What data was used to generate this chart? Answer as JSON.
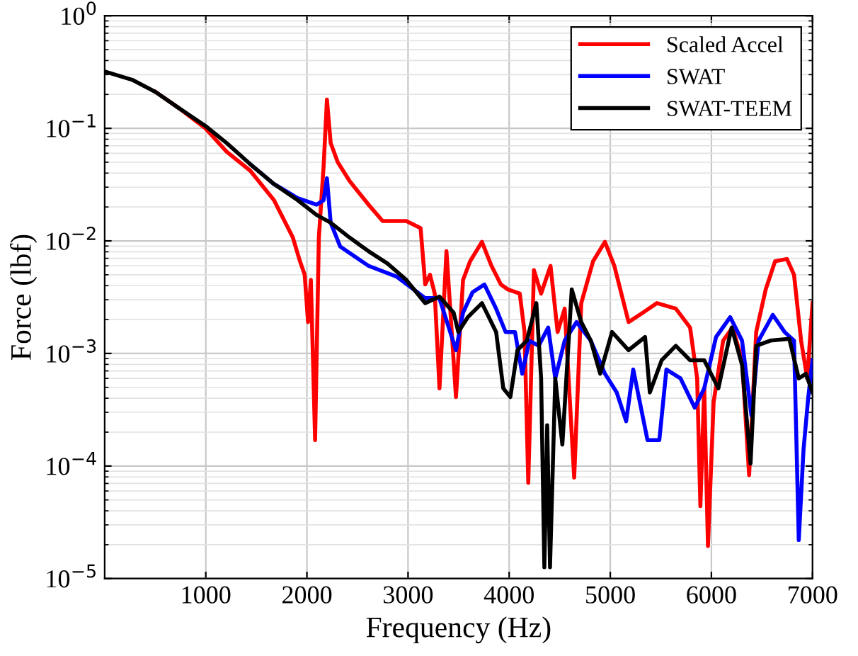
{
  "chart_data": {
    "type": "line",
    "xlabel": "Frequency (Hz)",
    "ylabel": "Force (lbf)",
    "log": "y",
    "grid": true,
    "legend": "top right",
    "line_style": "solid",
    "marker": "none",
    "xlim": [
      0,
      7000
    ],
    "xticks": [
      1000,
      2000,
      3000,
      4000,
      5000,
      6000,
      7000
    ],
    "ylim": [
      1e-05,
      1
    ],
    "yticks": [
      {
        "value": 1e-05,
        "label": "10$^{−5}$"
      },
      {
        "value": 0.0001,
        "label": "10$^{−4}$"
      },
      {
        "value": 0.001,
        "label": "10$^{−3}$"
      },
      {
        "value": 0.01,
        "label": "10$^{−2}$"
      },
      {
        "value": 0.1,
        "label": "10$^{−1}$"
      },
      {
        "value": 1,
        "label": "10$^{0}$"
      }
    ],
    "series": [
      {
        "name": "Scaled Accel",
        "color": "#ff0000",
        "x": [
          505,
          739,
          996,
          1206,
          1440,
          1674,
          1861,
          1931,
          1978,
          2011,
          2039,
          2081,
          2118,
          2165,
          2198,
          2235,
          2305,
          2422,
          2609,
          2749,
          2983,
          3124,
          3170,
          3217,
          3264,
          3311,
          3380,
          3474,
          3544,
          3614,
          3731,
          3825,
          3918,
          3988,
          4105,
          4152,
          4189,
          4245,
          4316,
          4409,
          4479,
          4549,
          4643,
          4713,
          4830,
          4947,
          5040,
          5181,
          5321,
          5461,
          5648,
          5789,
          5859,
          5891,
          5929,
          5966,
          6022,
          6116,
          6209,
          6303,
          6373,
          6443,
          6537,
          6630,
          6747,
          6817,
          6887,
          6948,
          7000
        ],
        "values": [
          0.21,
          0.15,
          0.1,
          0.062,
          0.042,
          0.023,
          0.0107,
          0.0066,
          0.005,
          0.0019,
          0.0045,
          0.00017,
          0.0107,
          0.046,
          0.18,
          0.074,
          0.05,
          0.034,
          0.021,
          0.015,
          0.015,
          0.013,
          0.0041,
          0.005,
          0.0034,
          0.00049,
          0.0081,
          0.00041,
          0.0045,
          0.0066,
          0.0098,
          0.006,
          0.0041,
          0.0037,
          0.0034,
          0.00155,
          7.1e-05,
          0.0055,
          0.0034,
          0.006,
          0.00155,
          0.0025,
          7.9e-05,
          0.0028,
          0.0066,
          0.0098,
          0.006,
          0.0019,
          0.0023,
          0.0028,
          0.0025,
          0.0017,
          0.0006,
          4.4e-05,
          0.00049,
          1.95e-05,
          0.00037,
          0.0013,
          0.0017,
          0.00087,
          8.3e-05,
          0.00155,
          0.0037,
          0.0066,
          0.0069,
          0.005,
          0.0013,
          0.0006,
          0.0028
        ]
      },
      {
        "name": "SWAT",
        "color": "#0000ff",
        "x": [
          1440,
          1674,
          1908,
          2095,
          2165,
          2198,
          2235,
          2329,
          2609,
          2890,
          3170,
          3310,
          3474,
          3544,
          3638,
          3755,
          3871,
          3965,
          4058,
          4129,
          4199,
          4292,
          4386,
          4456,
          4549,
          4666,
          4807,
          4947,
          5064,
          5157,
          5227,
          5368,
          5485,
          5555,
          5695,
          5835,
          5929,
          6046,
          6186,
          6303,
          6396,
          6466,
          6607,
          6724,
          6817,
          6864,
          6911,
          6958,
          7000
        ],
        "values": [
          0.048,
          0.032,
          0.024,
          0.021,
          0.023,
          0.036,
          0.0145,
          0.0089,
          0.006,
          0.0048,
          0.0031,
          0.0031,
          0.00107,
          0.0023,
          0.0035,
          0.0041,
          0.0025,
          0.00155,
          0.00155,
          0.00066,
          0.0013,
          0.00117,
          0.0017,
          0.0006,
          0.0013,
          0.0019,
          0.0013,
          0.00066,
          0.00045,
          0.00025,
          0.00072,
          0.00017,
          0.00017,
          0.00072,
          0.0006,
          0.00033,
          0.00049,
          0.0014,
          0.0021,
          0.0013,
          0.00028,
          0.0013,
          0.0022,
          0.00155,
          0.0013,
          2.2e-05,
          0.00014,
          0.00041,
          0.00087
        ]
      },
      {
        "name": "SWAT-TEEM",
        "color": "#000000",
        "x": [
          0,
          271,
          505,
          739,
          996,
          1206,
          1440,
          1674,
          1908,
          2095,
          2235,
          2422,
          2609,
          2796,
          2983,
          3170,
          3310,
          3451,
          3497,
          3591,
          3731,
          3871,
          3942,
          4012,
          4082,
          4175,
          4269,
          4316,
          4348,
          4376,
          4404,
          4456,
          4526,
          4619,
          4713,
          4807,
          4900,
          5017,
          5181,
          5344,
          5391,
          5508,
          5648,
          5789,
          5929,
          6069,
          6200,
          6303,
          6387,
          6443,
          6583,
          6770,
          6864,
          6934,
          7000
        ],
        "values": [
          0.32,
          0.27,
          0.21,
          0.15,
          0.105,
          0.074,
          0.048,
          0.032,
          0.023,
          0.017,
          0.0145,
          0.0107,
          0.0081,
          0.0063,
          0.0045,
          0.0028,
          0.0032,
          0.0023,
          0.00155,
          0.0021,
          0.0028,
          0.00155,
          0.00049,
          0.00041,
          0.00107,
          0.0013,
          0.0028,
          0.0006,
          1.26e-05,
          0.00023,
          1.26e-05,
          0.0006,
          0.000155,
          0.0037,
          0.0019,
          0.0013,
          0.00066,
          0.00155,
          0.00107,
          0.0014,
          0.00045,
          0.00087,
          0.00117,
          0.00087,
          0.00087,
          0.00049,
          0.0017,
          0.00079,
          0.000105,
          0.00117,
          0.0013,
          0.00135,
          0.0006,
          0.00066,
          0.00045
        ]
      }
    ]
  }
}
